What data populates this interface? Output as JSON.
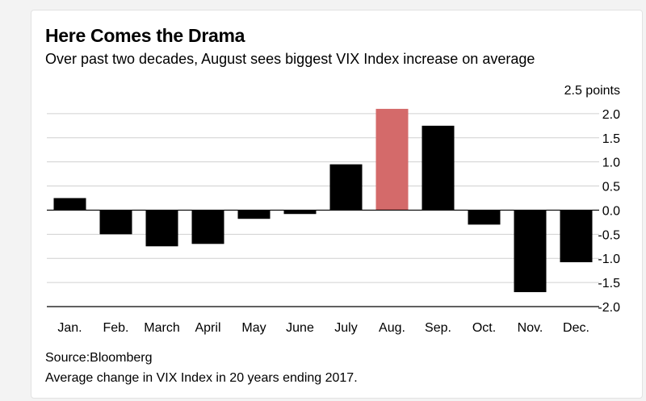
{
  "header": {
    "title": "Here Comes the Drama",
    "subtitle": "Over past two decades, August sees biggest VIX Index increase on average"
  },
  "footer": {
    "source": "Source:Bloomberg",
    "note": "Average change in VIX Index in 20 years ending 2017."
  },
  "chart_data": {
    "type": "bar",
    "title": "Here Comes the Drama",
    "subtitle": "Over past two decades, August sees biggest VIX Index increase on average",
    "categories": [
      "Jan.",
      "Feb.",
      "March",
      "April",
      "May",
      "June",
      "July",
      "Aug.",
      "Sep.",
      "Oct.",
      "Nov.",
      "Dec."
    ],
    "values": [
      0.25,
      -0.5,
      -0.75,
      -0.7,
      -0.18,
      -0.08,
      0.95,
      2.1,
      1.75,
      -0.3,
      -1.7,
      -1.08
    ],
    "ylim": [
      -2.0,
      2.5
    ],
    "yticks": [
      2.5,
      2.0,
      1.5,
      1.0,
      0.5,
      0.0,
      -0.5,
      -1.0,
      -1.5,
      -2.0
    ],
    "ytick_labels": [
      "2.5 points",
      "2.0",
      "1.5",
      "1.0",
      "0.5",
      "0.0",
      "-0.5",
      "-1.0",
      "-1.5",
      "-2.0"
    ],
    "yaxis_position": "right",
    "grid": true,
    "colors": {
      "bar": "#000000",
      "highlight": "#d46a6a",
      "grid": "#d0d0d0",
      "zero": "#000000"
    },
    "highlight_category": "Aug."
  }
}
